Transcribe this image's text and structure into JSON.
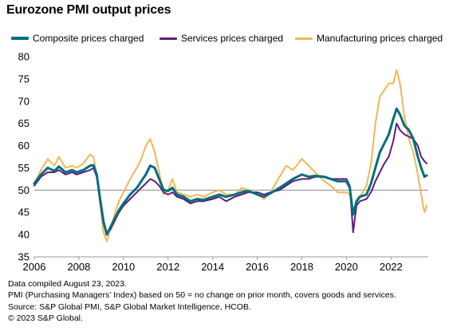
{
  "chart_data": {
    "type": "line",
    "title": "Eurozone PMI output prices",
    "xlabel": "",
    "ylabel": "",
    "xlim": [
      2006,
      2023.67
    ],
    "ylim": [
      35,
      80
    ],
    "yticks": [
      35,
      40,
      45,
      50,
      55,
      60,
      65,
      70,
      75,
      80
    ],
    "xticks": [
      2006,
      2008,
      2010,
      2012,
      2014,
      2016,
      2018,
      2020,
      2022
    ],
    "reference_line": 50,
    "grid": false,
    "legend_position": "top",
    "series": [
      {
        "name": "Composite prices charged",
        "color": "#006e7d",
        "width": 3,
        "points": [
          [
            2006.0,
            51.5
          ],
          [
            2006.3,
            53.5
          ],
          [
            2006.6,
            55.0
          ],
          [
            2006.9,
            54.3
          ],
          [
            2007.1,
            55.3
          ],
          [
            2007.4,
            54.0
          ],
          [
            2007.7,
            54.5
          ],
          [
            2007.9,
            54.0
          ],
          [
            2008.2,
            54.5
          ],
          [
            2008.5,
            55.5
          ],
          [
            2008.65,
            55.6
          ],
          [
            2008.8,
            53.5
          ],
          [
            2008.95,
            48.0
          ],
          [
            2009.1,
            43.0
          ],
          [
            2009.25,
            40.0
          ],
          [
            2009.4,
            41.5
          ],
          [
            2009.6,
            43.5
          ],
          [
            2009.8,
            45.5
          ],
          [
            2010.0,
            47.0
          ],
          [
            2010.3,
            49.0
          ],
          [
            2010.6,
            50.5
          ],
          [
            2010.8,
            52.0
          ],
          [
            2011.0,
            53.5
          ],
          [
            2011.2,
            55.5
          ],
          [
            2011.4,
            55.0
          ],
          [
            2011.6,
            52.5
          ],
          [
            2011.8,
            50.0
          ],
          [
            2012.0,
            49.8
          ],
          [
            2012.2,
            50.5
          ],
          [
            2012.4,
            49.0
          ],
          [
            2012.7,
            48.5
          ],
          [
            2013.0,
            47.5
          ],
          [
            2013.3,
            48.0
          ],
          [
            2013.6,
            47.8
          ],
          [
            2014.0,
            48.5
          ],
          [
            2014.3,
            49.0
          ],
          [
            2014.6,
            48.5
          ],
          [
            2015.0,
            49.0
          ],
          [
            2015.3,
            49.5
          ],
          [
            2015.6,
            49.8
          ],
          [
            2016.0,
            49.0
          ],
          [
            2016.3,
            48.5
          ],
          [
            2016.6,
            49.3
          ],
          [
            2017.0,
            50.5
          ],
          [
            2017.3,
            51.5
          ],
          [
            2017.6,
            52.5
          ],
          [
            2018.0,
            53.5
          ],
          [
            2018.3,
            53.0
          ],
          [
            2018.6,
            53.2
          ],
          [
            2019.0,
            53.0
          ],
          [
            2019.3,
            52.5
          ],
          [
            2019.6,
            52.0
          ],
          [
            2020.0,
            52.0
          ],
          [
            2020.15,
            50.5
          ],
          [
            2020.3,
            44.5
          ],
          [
            2020.45,
            47.5
          ],
          [
            2020.6,
            48.5
          ],
          [
            2020.9,
            49.0
          ],
          [
            2021.1,
            51.5
          ],
          [
            2021.3,
            55.0
          ],
          [
            2021.5,
            58.5
          ],
          [
            2021.7,
            60.5
          ],
          [
            2021.9,
            62.5
          ],
          [
            2022.1,
            66.0
          ],
          [
            2022.25,
            68.3
          ],
          [
            2022.4,
            67.0
          ],
          [
            2022.6,
            64.5
          ],
          [
            2022.8,
            63.5
          ],
          [
            2023.0,
            61.5
          ],
          [
            2023.2,
            57.5
          ],
          [
            2023.35,
            55.0
          ],
          [
            2023.5,
            53.0
          ],
          [
            2023.6,
            53.3
          ]
        ]
      },
      {
        "name": "Services prices charged",
        "color": "#5f1d7d",
        "width": 2,
        "points": [
          [
            2006.0,
            51.0
          ],
          [
            2006.3,
            53.0
          ],
          [
            2006.6,
            54.0
          ],
          [
            2006.9,
            54.0
          ],
          [
            2007.1,
            54.5
          ],
          [
            2007.4,
            53.5
          ],
          [
            2007.7,
            54.0
          ],
          [
            2007.9,
            53.5
          ],
          [
            2008.2,
            54.0
          ],
          [
            2008.5,
            54.5
          ],
          [
            2008.65,
            55.0
          ],
          [
            2008.8,
            53.0
          ],
          [
            2008.95,
            47.5
          ],
          [
            2009.1,
            42.5
          ],
          [
            2009.25,
            40.5
          ],
          [
            2009.4,
            41.0
          ],
          [
            2009.6,
            43.0
          ],
          [
            2009.8,
            45.0
          ],
          [
            2010.0,
            46.5
          ],
          [
            2010.3,
            48.0
          ],
          [
            2010.6,
            49.5
          ],
          [
            2010.8,
            50.5
          ],
          [
            2011.0,
            51.5
          ],
          [
            2011.2,
            52.5
          ],
          [
            2011.4,
            52.0
          ],
          [
            2011.6,
            51.0
          ],
          [
            2011.8,
            49.5
          ],
          [
            2012.0,
            49.0
          ],
          [
            2012.2,
            49.5
          ],
          [
            2012.4,
            48.5
          ],
          [
            2012.7,
            48.0
          ],
          [
            2013.0,
            47.0
          ],
          [
            2013.3,
            47.5
          ],
          [
            2013.6,
            47.5
          ],
          [
            2014.0,
            48.0
          ],
          [
            2014.3,
            48.5
          ],
          [
            2014.6,
            47.5
          ],
          [
            2015.0,
            48.5
          ],
          [
            2015.3,
            49.0
          ],
          [
            2015.6,
            49.5
          ],
          [
            2016.0,
            49.5
          ],
          [
            2016.3,
            49.0
          ],
          [
            2016.6,
            49.5
          ],
          [
            2017.0,
            50.0
          ],
          [
            2017.3,
            51.0
          ],
          [
            2017.6,
            52.0
          ],
          [
            2018.0,
            52.5
          ],
          [
            2018.3,
            52.5
          ],
          [
            2018.6,
            53.0
          ],
          [
            2019.0,
            53.0
          ],
          [
            2019.3,
            52.5
          ],
          [
            2019.6,
            52.5
          ],
          [
            2020.0,
            52.5
          ],
          [
            2020.15,
            51.0
          ],
          [
            2020.3,
            40.5
          ],
          [
            2020.45,
            46.5
          ],
          [
            2020.6,
            47.5
          ],
          [
            2020.9,
            48.0
          ],
          [
            2021.1,
            49.5
          ],
          [
            2021.3,
            52.0
          ],
          [
            2021.5,
            54.0
          ],
          [
            2021.7,
            56.0
          ],
          [
            2021.9,
            57.5
          ],
          [
            2022.1,
            61.0
          ],
          [
            2022.25,
            65.0
          ],
          [
            2022.4,
            63.5
          ],
          [
            2022.6,
            62.5
          ],
          [
            2022.8,
            62.0
          ],
          [
            2023.0,
            61.5
          ],
          [
            2023.2,
            60.0
          ],
          [
            2023.35,
            57.5
          ],
          [
            2023.5,
            56.5
          ],
          [
            2023.6,
            56.0
          ]
        ]
      },
      {
        "name": "Manufacturing prices charged",
        "color": "#f5b556",
        "width": 2,
        "points": [
          [
            2006.0,
            51.5
          ],
          [
            2006.3,
            54.5
          ],
          [
            2006.6,
            57.0
          ],
          [
            2006.9,
            55.5
          ],
          [
            2007.1,
            57.5
          ],
          [
            2007.4,
            55.0
          ],
          [
            2007.7,
            55.5
          ],
          [
            2007.9,
            55.0
          ],
          [
            2008.2,
            56.0
          ],
          [
            2008.5,
            58.0
          ],
          [
            2008.65,
            57.5
          ],
          [
            2008.8,
            53.5
          ],
          [
            2008.95,
            47.0
          ],
          [
            2009.1,
            40.5
          ],
          [
            2009.25,
            38.5
          ],
          [
            2009.4,
            41.0
          ],
          [
            2009.6,
            44.5
          ],
          [
            2009.8,
            47.5
          ],
          [
            2010.0,
            49.5
          ],
          [
            2010.3,
            52.5
          ],
          [
            2010.6,
            55.0
          ],
          [
            2010.8,
            57.0
          ],
          [
            2011.0,
            60.0
          ],
          [
            2011.2,
            61.5
          ],
          [
            2011.4,
            58.5
          ],
          [
            2011.6,
            54.0
          ],
          [
            2011.8,
            49.0
          ],
          [
            2012.0,
            50.0
          ],
          [
            2012.2,
            52.5
          ],
          [
            2012.4,
            49.5
          ],
          [
            2012.7,
            49.0
          ],
          [
            2013.0,
            48.5
          ],
          [
            2013.3,
            49.0
          ],
          [
            2013.6,
            48.5
          ],
          [
            2014.0,
            49.5
          ],
          [
            2014.3,
            50.0
          ],
          [
            2014.6,
            49.0
          ],
          [
            2015.0,
            49.0
          ],
          [
            2015.3,
            50.5
          ],
          [
            2015.6,
            50.0
          ],
          [
            2016.0,
            49.0
          ],
          [
            2016.3,
            48.0
          ],
          [
            2016.6,
            49.5
          ],
          [
            2017.0,
            53.0
          ],
          [
            2017.3,
            55.5
          ],
          [
            2017.6,
            54.5
          ],
          [
            2018.0,
            57.0
          ],
          [
            2018.3,
            55.5
          ],
          [
            2018.6,
            54.0
          ],
          [
            2019.0,
            52.0
          ],
          [
            2019.3,
            51.0
          ],
          [
            2019.6,
            49.5
          ],
          [
            2020.0,
            49.5
          ],
          [
            2020.15,
            49.0
          ],
          [
            2020.3,
            45.5
          ],
          [
            2020.45,
            47.0
          ],
          [
            2020.6,
            48.5
          ],
          [
            2020.9,
            51.0
          ],
          [
            2021.1,
            56.0
          ],
          [
            2021.3,
            65.0
          ],
          [
            2021.5,
            71.0
          ],
          [
            2021.7,
            72.5
          ],
          [
            2021.9,
            74.0
          ],
          [
            2022.1,
            74.0
          ],
          [
            2022.25,
            77.0
          ],
          [
            2022.4,
            74.0
          ],
          [
            2022.6,
            66.5
          ],
          [
            2022.8,
            61.5
          ],
          [
            2023.0,
            58.5
          ],
          [
            2023.2,
            53.5
          ],
          [
            2023.35,
            49.0
          ],
          [
            2023.5,
            45.0
          ],
          [
            2023.6,
            46.5
          ]
        ]
      }
    ]
  },
  "notes": [
    "Data compiled August 23, 2023.",
    "PMI (Purchasing Managers' Index) based on 50 = no change on prior month, covers goods and services.",
    "Source: S&P Global PMI, S&P Global Market Intelligence, HCOB.",
    "© 2023 S&P Global."
  ]
}
